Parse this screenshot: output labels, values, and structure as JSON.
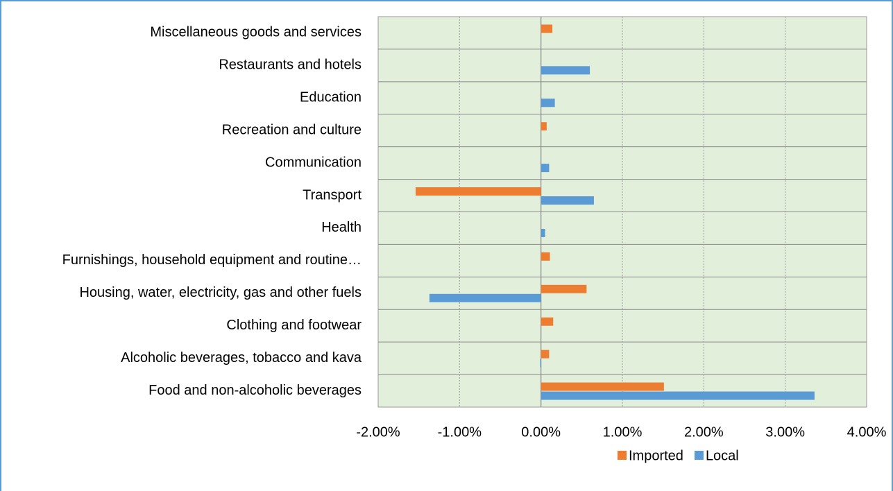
{
  "chart_data": {
    "type": "hbar",
    "categories": [
      "Food and non-alcoholic beverages",
      "Alcoholic beverages, tobacco and kava",
      "Clothing and footwear",
      "Housing, water, electricity, gas and other fuels",
      "Furnishings, household equipment and routine…",
      "Health",
      "Transport",
      "Communication",
      "Recreation and culture",
      "Education",
      "Restaurants and hotels",
      "Miscellaneous goods and services"
    ],
    "series": [
      {
        "name": "Imported",
        "color": "#ed7d31",
        "values": [
          1.51,
          0.1,
          0.15,
          0.56,
          0.11,
          null,
          -1.54,
          null,
          0.07,
          null,
          null,
          0.14
        ]
      },
      {
        "name": "Local",
        "color": "#5b9bd5",
        "values": [
          3.36,
          -0.01,
          null,
          -1.37,
          null,
          0.05,
          0.65,
          0.1,
          null,
          0.17,
          0.6,
          null
        ]
      }
    ],
    "xlim": [
      -2,
      4
    ],
    "xticks": [
      {
        "value": -2,
        "label": "-2.00%"
      },
      {
        "value": -1,
        "label": "-1.00%"
      },
      {
        "value": 0,
        "label": "0.00%"
      },
      {
        "value": 1,
        "label": "1.00%"
      },
      {
        "value": 2,
        "label": "2.00%"
      },
      {
        "value": 3,
        "label": "3.00%"
      },
      {
        "value": 4,
        "label": "4.00%"
      }
    ],
    "grid": true,
    "legend": "bottom",
    "plot_background": "#e2efda"
  }
}
